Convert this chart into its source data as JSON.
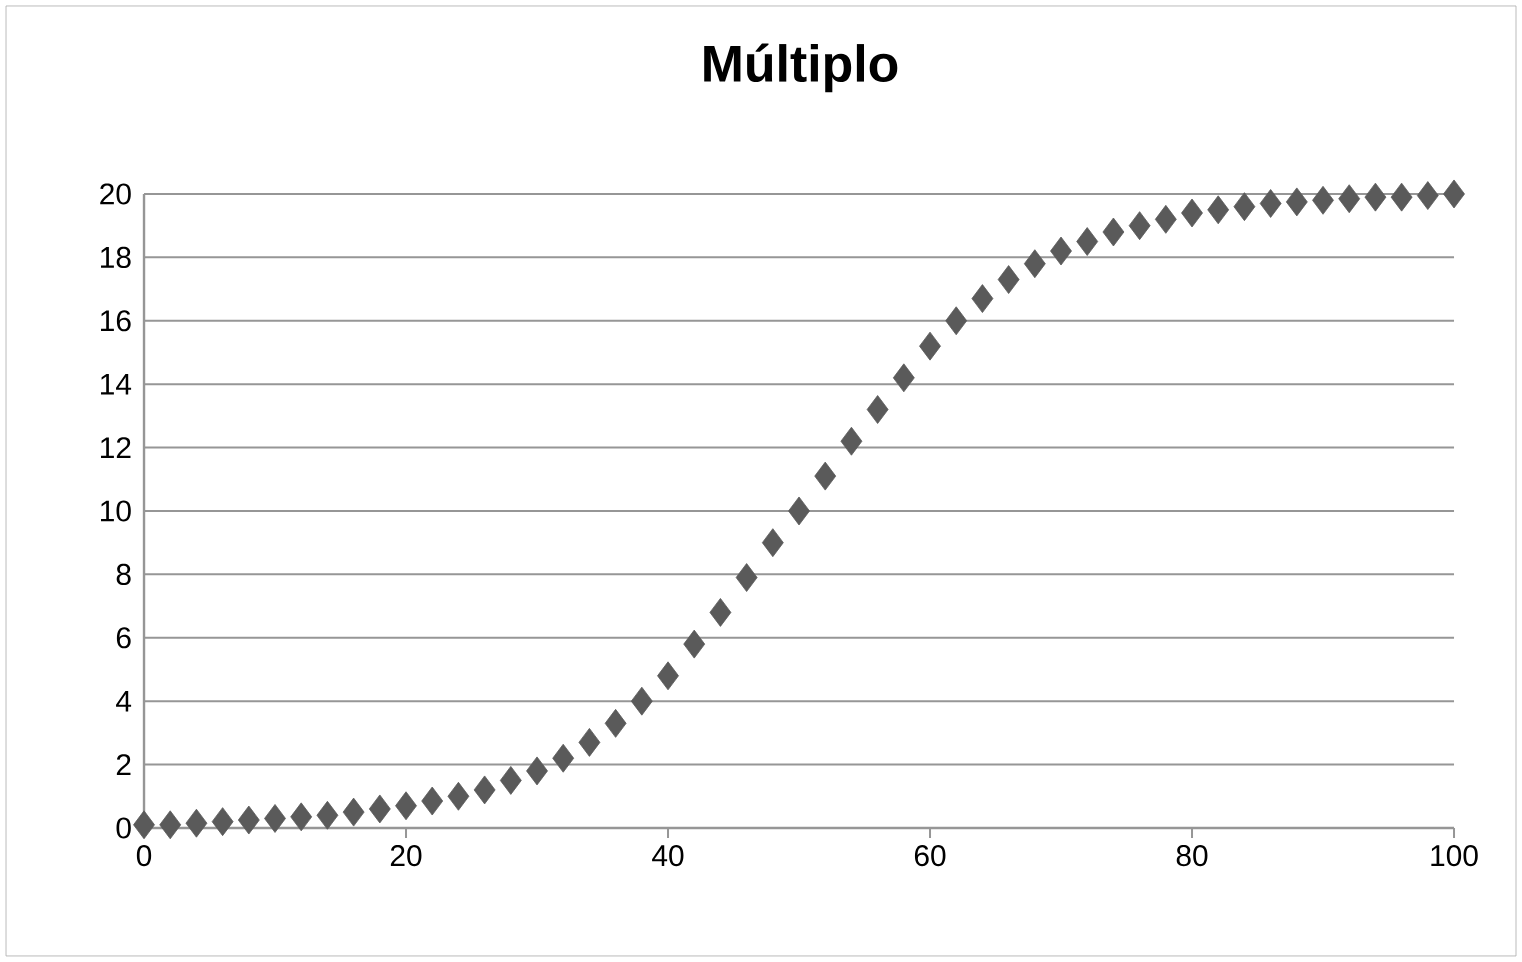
{
  "chart_data": {
    "type": "scatter",
    "title": "Múltiplo",
    "color": "#5a5a5a",
    "marker": "diamond",
    "grid": "y",
    "x": [
      0,
      2,
      4,
      6,
      8,
      10,
      12,
      14,
      16,
      18,
      20,
      22,
      24,
      26,
      28,
      30,
      32,
      34,
      36,
      38,
      40,
      42,
      44,
      46,
      48,
      50,
      52,
      54,
      56,
      58,
      60,
      62,
      64,
      66,
      68,
      70,
      72,
      74,
      76,
      78,
      80,
      82,
      84,
      86,
      88,
      90,
      92,
      94,
      96,
      98,
      100
    ],
    "values": [
      0.1,
      0.1,
      0.15,
      0.2,
      0.25,
      0.3,
      0.35,
      0.4,
      0.5,
      0.6,
      0.7,
      0.85,
      1.0,
      1.2,
      1.5,
      1.8,
      2.2,
      2.7,
      3.3,
      4.0,
      4.8,
      5.8,
      6.8,
      7.9,
      9.0,
      10.0,
      11.1,
      12.2,
      13.2,
      14.2,
      15.2,
      16.0,
      16.7,
      17.3,
      17.8,
      18.2,
      18.5,
      18.8,
      19.0,
      19.2,
      19.4,
      19.5,
      19.6,
      19.7,
      19.75,
      19.8,
      19.85,
      19.9,
      19.9,
      19.95,
      20.0
    ],
    "xlim": [
      0,
      100
    ],
    "ylim": [
      0,
      20
    ],
    "xticks": [
      0,
      20,
      40,
      60,
      80,
      100
    ],
    "yticks": [
      0,
      2,
      4,
      6,
      8,
      10,
      12,
      14,
      16,
      18,
      20
    ]
  }
}
